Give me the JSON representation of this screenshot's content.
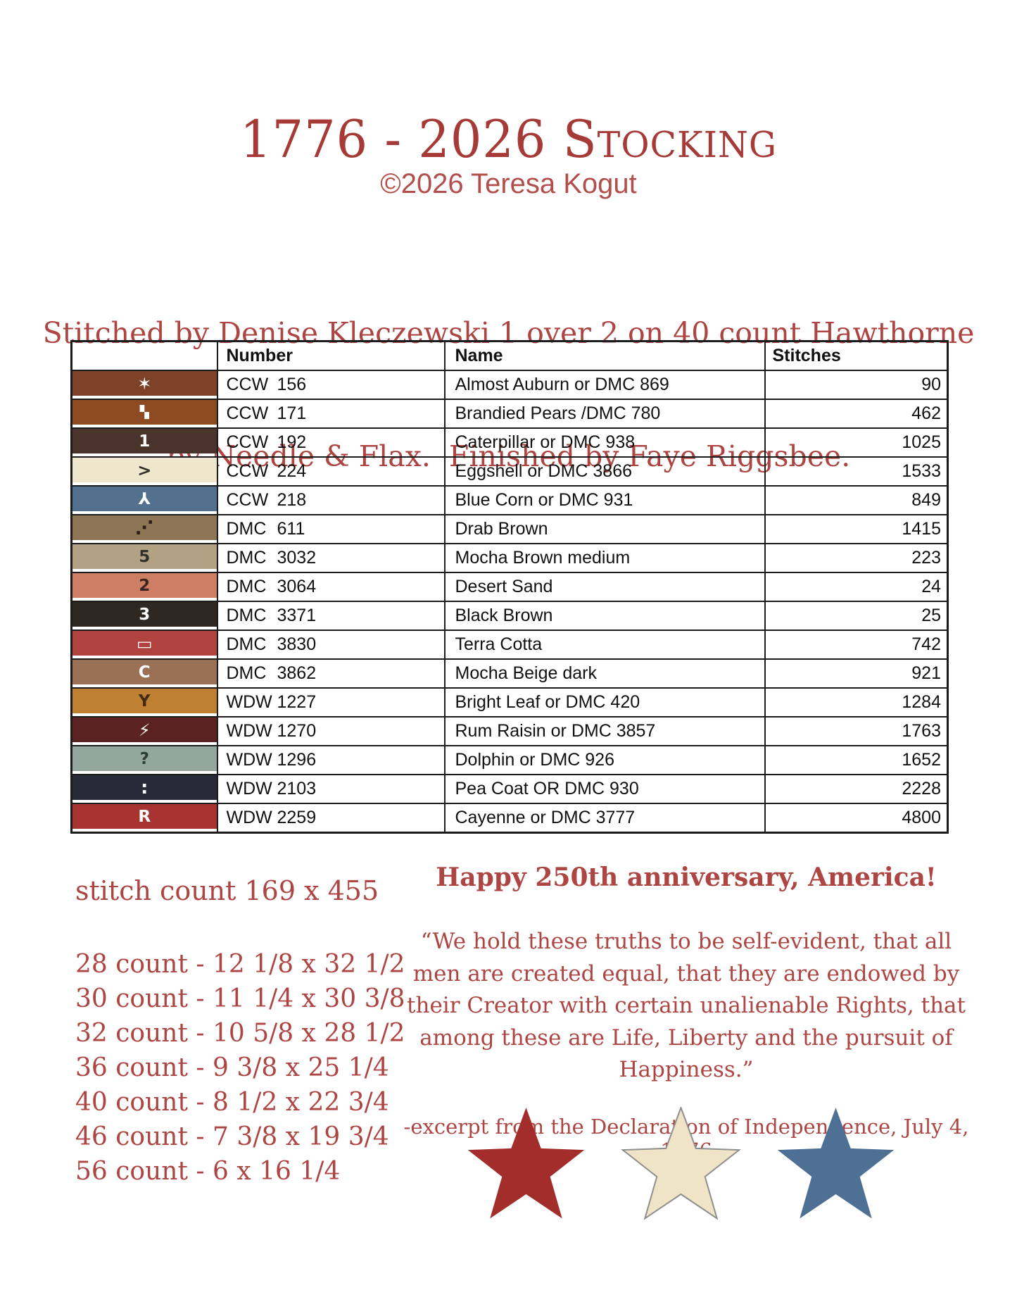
{
  "page": {
    "title": "1776 - 2026 Stocking",
    "copyright": "©2026 Teresa Kogut",
    "stitched_line1": "Stitched by Denise Kleczewski 1 over 2 on 40 count Hawthorne",
    "stitched_line2": "by Needle & Flax.  Finished by Faye Riggsbee."
  },
  "colors": {
    "title_red": "#a53a36",
    "body_red": "#ad4543",
    "copyright_red": "#b24e4b",
    "table_border": "#1c1c1c",
    "page_background": "#ffffff"
  },
  "table": {
    "headers": {
      "symbol": "",
      "number": "Number",
      "name": "Name",
      "stitches": "Stitches"
    },
    "rows": [
      {
        "symbol": "✶",
        "symbol_color": "#ffffff",
        "symbol_size": 24,
        "swatch": "#7d4227",
        "brand": "CCW",
        "code": "156",
        "name": "Almost Auburn or DMC 869",
        "stitches": "90"
      },
      {
        "symbol": "▚",
        "symbol_color": "#ffffff",
        "symbol_size": 17,
        "swatch": "#8e4b21",
        "brand": "CCW",
        "code": "171",
        "name": "Brandied Pears /DMC 780",
        "stitches": "462"
      },
      {
        "symbol": "1",
        "symbol_color": "#ffffff",
        "symbol_size": 23,
        "swatch": "#4a332b",
        "brand": "CCW",
        "code": "192",
        "name": "Caterpillar or DMC 938",
        "stitches": "1025"
      },
      {
        "symbol": ">",
        "symbol_color": "#33302a",
        "symbol_size": 24,
        "swatch": "#efe6ce",
        "brand": "CCW",
        "code": "224",
        "name": "Eggshell or DMC 3866",
        "stitches": "1533"
      },
      {
        "symbol": "⅄",
        "symbol_color": "#ffffff",
        "symbol_size": 23,
        "swatch": "#53708e",
        "brand": "CCW",
        "code": "218",
        "name": "Blue Corn or DMC 931",
        "stitches": "849"
      },
      {
        "symbol": "⋰",
        "symbol_color": "#2e2014",
        "symbol_size": 26,
        "swatch": "#8d7555",
        "brand": "DMC",
        "code": "611",
        "name": "Drab Brown",
        "stitches": "1415"
      },
      {
        "symbol": "5",
        "symbol_color": "#33312e",
        "symbol_size": 23,
        "swatch": "#b3a183",
        "brand": "DMC",
        "code": "3032",
        "name": "Mocha Brown medium",
        "stitches": "223"
      },
      {
        "symbol": "2",
        "symbol_color": "#3a2420",
        "symbol_size": 23,
        "swatch": "#cd7e65",
        "brand": "DMC",
        "code": "3064",
        "name": "Desert Sand",
        "stitches": "24"
      },
      {
        "symbol": "3",
        "symbol_color": "#ffffff",
        "symbol_size": 23,
        "swatch": "#2e2722",
        "brand": "DMC",
        "code": "3371",
        "name": "Black Brown",
        "stitches": "25"
      },
      {
        "symbol": "▭",
        "symbol_color": "#ffffff",
        "symbol_size": 24,
        "swatch": "#b04340",
        "brand": "DMC",
        "code": "3830",
        "name": "Terra Cotta",
        "stitches": "742"
      },
      {
        "symbol": "C",
        "symbol_color": "#ffffff",
        "symbol_size": 23,
        "swatch": "#9b7156",
        "brand": "DMC",
        "code": "3862",
        "name": "Mocha Beige dark",
        "stitches": "921"
      },
      {
        "symbol": "Y",
        "symbol_color": "#3f2c12",
        "symbol_size": 23,
        "swatch": "#c08034",
        "brand": "WDW",
        "code": "1227",
        "name": "Bright Leaf or DMC 420",
        "stitches": "1284"
      },
      {
        "symbol": "⚡",
        "symbol_color": "#ffffff",
        "symbol_size": 24,
        "swatch": "#5a2322",
        "brand": "WDW",
        "code": "1270",
        "name": "Rum Raisin or DMC 3857",
        "stitches": "1763"
      },
      {
        "symbol": "?",
        "symbol_color": "#2f3b37",
        "symbol_size": 23,
        "swatch": "#94a79e",
        "brand": "WDW",
        "code": "1296",
        "name": "Dolphin or DMC 926",
        "stitches": "1652"
      },
      {
        "symbol": ":",
        "symbol_color": "#ffffff",
        "symbol_size": 26,
        "swatch": "#282a38",
        "brand": "WDW",
        "code": "2103",
        "name": "Pea Coat OR DMC 930",
        "stitches": "2228"
      },
      {
        "symbol": "R",
        "symbol_color": "#ffffff",
        "symbol_size": 23,
        "swatch": "#a83432",
        "brand": "WDW",
        "code": "2259",
        "name": "Cayenne or DMC 3777",
        "stitches": "4800"
      }
    ]
  },
  "sizes": {
    "stitch_count": "stitch count 169 x 455",
    "lines": [
      "28 count - 12 1/8 x 32 1/2",
      "30 count - 11 1/4 x 30 3/8",
      "32 count - 10 5/8 x 28 1/2",
      "36 count - 9 3/8 x 25 1/4",
      "40 count - 8 1/2 x 22 3/4",
      "46 count - 7 3/8 x 19 3/4",
      "56 count - 6 x 16 1/4"
    ]
  },
  "anniversary": {
    "heading": "Happy 250th anniversary, America!",
    "quote": "“We hold these truths to be self-evident, that all men are created equal, that they are endowed by their Creator with certain unalienable Rights, that among these are Life, Liberty and the pursuit of Happiness.”",
    "attribution": "-excerpt from the Declaration of Independence, July 4, 1776"
  },
  "stars": [
    {
      "label": "red-star",
      "fill": "#a32d2b",
      "stroke": "none"
    },
    {
      "label": "cream-star",
      "fill": "#efe4c6",
      "stroke": "#8f8f8f"
    },
    {
      "label": "blue-star",
      "fill": "#4e7095",
      "stroke": "none"
    }
  ]
}
